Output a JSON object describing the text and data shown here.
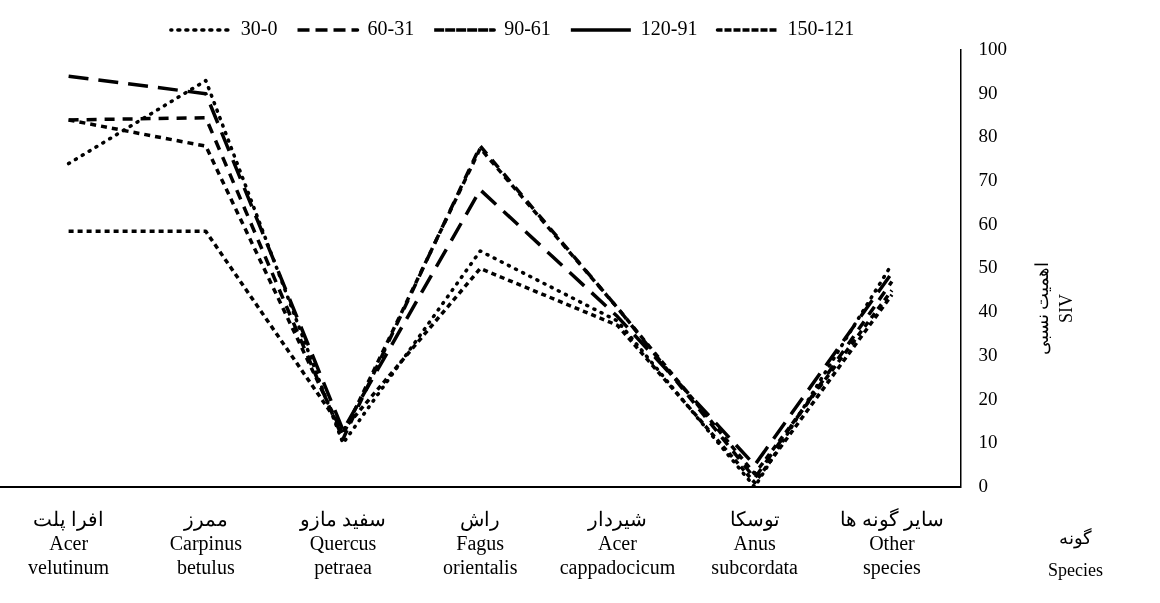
{
  "chart_data": {
    "type": "line",
    "xlabel": "گونه\nSpecies",
    "ylabel": "اهمیت نسبی\nSIV",
    "categories": [
      "افرا پلت\nAcer\nvelutinum",
      "ممرز\nCarpinus\nbetulus",
      "سفید مازو\nQuercus\npetraea",
      "راش\nFagus\norientalis",
      "شیردار\nAcer\ncappadocicum",
      "توسکا\nAnus\nsubcordata",
      "سایر گونه ها\nOther\nspecies"
    ],
    "series": [
      {
        "name": "30-0",
        "color": "#000000",
        "line_style": "dotted",
        "values": [
          74,
          93,
          10,
          54,
          38,
          0,
          51
        ]
      },
      {
        "name": "60-31",
        "color": "#000000",
        "line_style": "dashed",
        "values": [
          84,
          84.5,
          11,
          78,
          41,
          2,
          47
        ]
      },
      {
        "name": "90-61",
        "color": "#000000",
        "line_style": "dashed",
        "values": [
          84,
          78,
          12,
          77.5,
          41,
          3,
          45
        ]
      },
      {
        "name": "120-91",
        "color": "#000000",
        "line_style": "dashed",
        "values": [
          94,
          90,
          13,
          68,
          39,
          5,
          49
        ]
      },
      {
        "name": "150-121",
        "color": "#000000",
        "line_style": "dashed",
        "values": [
          58.5,
          58.5,
          13,
          50,
          37,
          1,
          44
        ]
      }
    ],
    "ylim": [
      0,
      100
    ],
    "yticks": [
      0,
      10,
      20,
      30,
      40,
      50,
      60,
      70,
      80,
      90,
      100
    ],
    "grid": false,
    "legend": "top",
    "marker": "none"
  }
}
